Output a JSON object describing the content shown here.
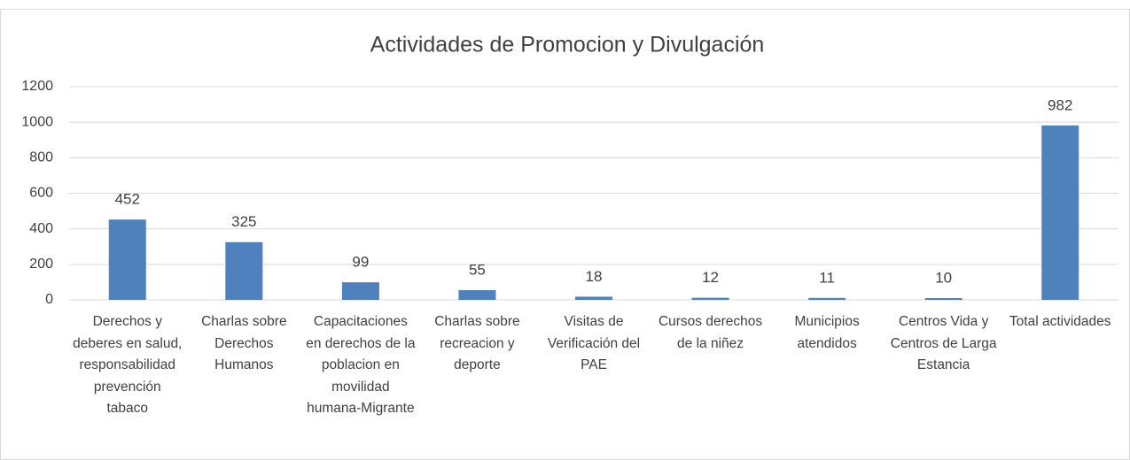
{
  "chart_data": {
    "type": "bar",
    "title": "Actividades de Promocion y Divulgación",
    "categories": [
      "Derechos y deberes en salud, responsabilidad prevención tabaco",
      "Charlas sobre Derechos Humanos",
      "Capacitaciones en derechos de la poblacion en movilidad humana-Migrante",
      "Charlas sobre recreacion y deporte",
      "Visitas de Verificación del PAE",
      "Cursos derechos de la niñez",
      "Municipios atendidos",
      "Centros Vida y Centros de Larga Estancia",
      "Total actividades"
    ],
    "values": [
      452,
      325,
      99,
      55,
      18,
      12,
      11,
      10,
      982
    ],
    "color": "#4f81bd",
    "ylim": [
      0,
      1200
    ],
    "yticks": [
      0,
      200,
      400,
      600,
      800,
      1000,
      1200
    ],
    "grid": true
  }
}
